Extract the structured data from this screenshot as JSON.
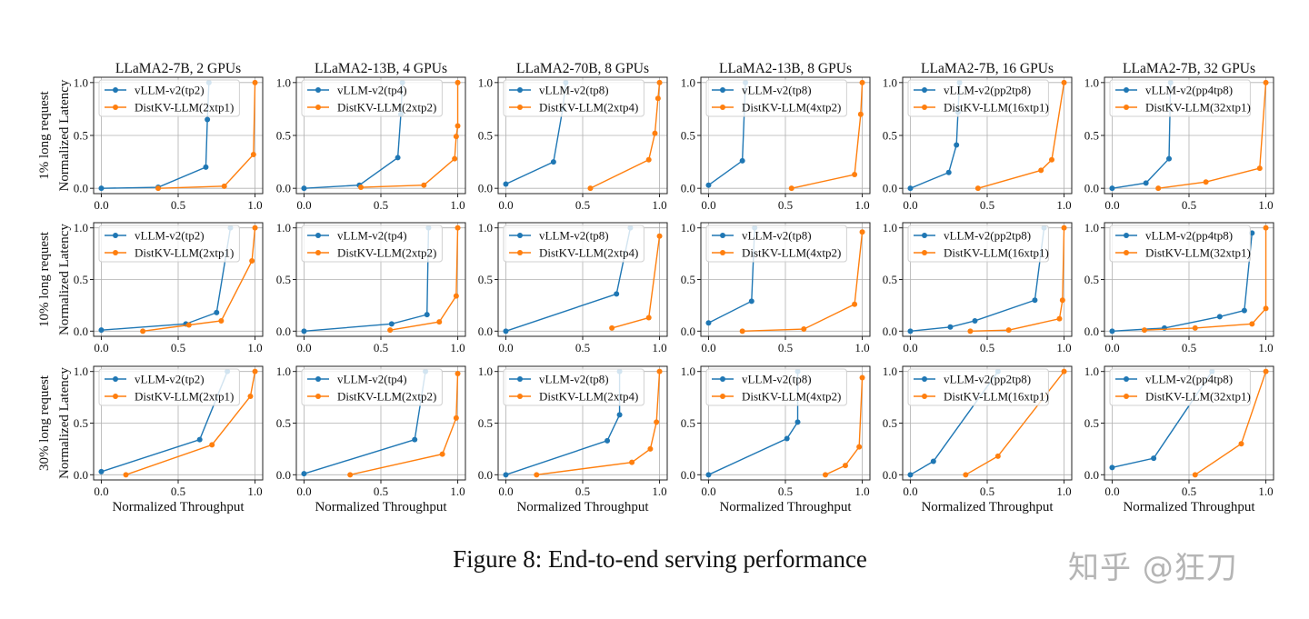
{
  "caption": "Figure 8: End-to-end serving performance",
  "watermark": "知乎 @狂刀",
  "colors": {
    "vllm": "#1f77b4",
    "distkv": "#ff7f0e"
  },
  "column_titles": [
    "LLaMA2-7B, 2 GPUs",
    "LLaMA2-13B, 4 GPUs",
    "LLaMA2-70B, 8 GPUs",
    "LLaMA2-13B, 8 GPUs",
    "LLaMA2-7B, 16 GPUs",
    "LLaMA2-7B, 32 GPUs"
  ],
  "row_labels": [
    "1% long request",
    "10% long request",
    "30% long request"
  ],
  "ylabel": "Normalized Latency",
  "xlabel": "Normalized Throughput",
  "legend_labels": [
    [
      "vLLM-v2(tp2)",
      "DistKV-LLM(2xtp1)"
    ],
    [
      "vLLM-v2(tp4)",
      "DistKV-LLM(2xtp2)"
    ],
    [
      "vLLM-v2(tp8)",
      "DistKV-LLM(2xtp4)"
    ],
    [
      "vLLM-v2(tp8)",
      "DistKV-LLM(4xtp2)"
    ],
    [
      "vLLM-v2(pp2tp8)",
      "DistKV-LLM(16xtp1)"
    ],
    [
      "vLLM-v2(pp4tp8)",
      "DistKV-LLM(32xtp1)"
    ]
  ],
  "chart_data": {
    "type": "line",
    "layout": "grid 3 rows x 6 columns",
    "xlim": [
      0,
      1
    ],
    "ylim": [
      0,
      1
    ],
    "xticks": [
      "0.0",
      "0.5",
      "1.0"
    ],
    "yticks": [
      "0.0",
      "0.5",
      "1.0"
    ],
    "grid": true,
    "legend_placement": "top-left",
    "panels": [
      {
        "row": 0,
        "col": 0,
        "series": [
          {
            "name": "vLLM-v2(tp2)",
            "points": [
              [
                0,
                0
              ],
              [
                0.37,
                0.01
              ],
              [
                0.68,
                0.2
              ],
              [
                0.69,
                0.65
              ],
              [
                0.7,
                1.0
              ]
            ]
          },
          {
            "name": "DistKV-LLM(2xtp1)",
            "points": [
              [
                0.37,
                0
              ],
              [
                0.8,
                0.02
              ],
              [
                0.99,
                0.32
              ],
              [
                1.0,
                1.0
              ]
            ]
          }
        ]
      },
      {
        "row": 0,
        "col": 1,
        "series": [
          {
            "name": "vLLM-v2(tp4)",
            "points": [
              [
                0,
                0
              ],
              [
                0.36,
                0.03
              ],
              [
                0.61,
                0.29
              ],
              [
                0.63,
                0.7
              ],
              [
                0.64,
                1.0
              ]
            ]
          },
          {
            "name": "DistKV-LLM(2xtp2)",
            "points": [
              [
                0.37,
                0.01
              ],
              [
                0.78,
                0.03
              ],
              [
                0.98,
                0.28
              ],
              [
                0.99,
                0.49
              ],
              [
                1.0,
                0.59
              ],
              [
                1.0,
                1.0
              ]
            ]
          }
        ]
      },
      {
        "row": 0,
        "col": 2,
        "series": [
          {
            "name": "vLLM-v2(tp8)",
            "points": [
              [
                0,
                0.04
              ],
              [
                0.31,
                0.25
              ],
              [
                0.37,
                0.75
              ],
              [
                0.39,
                1.0
              ]
            ]
          },
          {
            "name": "DistKV-LLM(2xtp4)",
            "points": [
              [
                0.55,
                0
              ],
              [
                0.93,
                0.27
              ],
              [
                0.97,
                0.52
              ],
              [
                0.99,
                0.85
              ],
              [
                1.0,
                1.0
              ]
            ]
          }
        ]
      },
      {
        "row": 0,
        "col": 3,
        "series": [
          {
            "name": "vLLM-v2(tp8)",
            "points": [
              [
                0,
                0.03
              ],
              [
                0.22,
                0.26
              ],
              [
                0.24,
                1.0
              ]
            ]
          },
          {
            "name": "DistKV-LLM(4xtp2)",
            "points": [
              [
                0.54,
                0
              ],
              [
                0.95,
                0.13
              ],
              [
                0.99,
                0.7
              ],
              [
                1.0,
                1.0
              ]
            ]
          }
        ]
      },
      {
        "row": 0,
        "col": 4,
        "series": [
          {
            "name": "vLLM-v2(pp2tp8)",
            "points": [
              [
                0,
                0
              ],
              [
                0.25,
                0.15
              ],
              [
                0.3,
                0.41
              ],
              [
                0.31,
                0.72
              ],
              [
                0.32,
                1.0
              ]
            ]
          },
          {
            "name": "DistKV-LLM(16xtp1)",
            "points": [
              [
                0.44,
                0
              ],
              [
                0.85,
                0.17
              ],
              [
                0.92,
                0.27
              ],
              [
                1.0,
                1.0
              ]
            ]
          }
        ]
      },
      {
        "row": 0,
        "col": 5,
        "series": [
          {
            "name": "vLLM-v2(pp4tp8)",
            "points": [
              [
                0,
                0
              ],
              [
                0.22,
                0.05
              ],
              [
                0.37,
                0.28
              ],
              [
                0.38,
                1.0
              ]
            ]
          },
          {
            "name": "DistKV-LLM(32xtp1)",
            "points": [
              [
                0.3,
                0
              ],
              [
                0.61,
                0.06
              ],
              [
                0.96,
                0.19
              ],
              [
                1.0,
                1.0
              ]
            ]
          }
        ]
      },
      {
        "row": 1,
        "col": 0,
        "series": [
          {
            "name": "vLLM-v2(tp2)",
            "points": [
              [
                0,
                0.01
              ],
              [
                0.55,
                0.07
              ],
              [
                0.75,
                0.18
              ],
              [
                0.84,
                1.0
              ]
            ]
          },
          {
            "name": "DistKV-LLM(2xtp1)",
            "points": [
              [
                0.27,
                0
              ],
              [
                0.57,
                0.06
              ],
              [
                0.78,
                0.1
              ],
              [
                0.98,
                0.68
              ],
              [
                1.0,
                1.0
              ]
            ]
          }
        ]
      },
      {
        "row": 1,
        "col": 1,
        "series": [
          {
            "name": "vLLM-v2(tp4)",
            "points": [
              [
                0,
                0
              ],
              [
                0.57,
                0.07
              ],
              [
                0.8,
                0.16
              ],
              [
                0.81,
                1.0
              ]
            ]
          },
          {
            "name": "DistKV-LLM(2xtp2)",
            "points": [
              [
                0.56,
                0.01
              ],
              [
                0.88,
                0.09
              ],
              [
                0.99,
                0.34
              ],
              [
                1.0,
                1.0
              ]
            ]
          }
        ]
      },
      {
        "row": 1,
        "col": 2,
        "series": [
          {
            "name": "vLLM-v2(tp8)",
            "points": [
              [
                0,
                0
              ],
              [
                0.72,
                0.36
              ],
              [
                0.81,
                1.0
              ]
            ]
          },
          {
            "name": "DistKV-LLM(2xtp4)",
            "points": [
              [
                0.69,
                0.03
              ],
              [
                0.93,
                0.13
              ],
              [
                1.0,
                0.92
              ]
            ]
          }
        ]
      },
      {
        "row": 1,
        "col": 3,
        "series": [
          {
            "name": "vLLM-v2(tp8)",
            "points": [
              [
                0,
                0.08
              ],
              [
                0.28,
                0.29
              ],
              [
                0.3,
                1.0
              ]
            ]
          },
          {
            "name": "DistKV-LLM(4xtp2)",
            "points": [
              [
                0.22,
                0
              ],
              [
                0.62,
                0.02
              ],
              [
                0.95,
                0.26
              ],
              [
                1.0,
                0.96
              ]
            ]
          }
        ]
      },
      {
        "row": 1,
        "col": 4,
        "series": [
          {
            "name": "vLLM-v2(pp2tp8)",
            "points": [
              [
                0,
                0
              ],
              [
                0.26,
                0.04
              ],
              [
                0.42,
                0.1
              ],
              [
                0.81,
                0.3
              ],
              [
                0.87,
                1.0
              ]
            ]
          },
          {
            "name": "DistKV-LLM(16xtp1)",
            "points": [
              [
                0.39,
                0
              ],
              [
                0.64,
                0.01
              ],
              [
                0.97,
                0.12
              ],
              [
                0.99,
                0.3
              ],
              [
                1.0,
                1.0
              ]
            ]
          }
        ]
      },
      {
        "row": 1,
        "col": 5,
        "series": [
          {
            "name": "vLLM-v2(pp4tp8)",
            "points": [
              [
                0,
                0
              ],
              [
                0.34,
                0.03
              ],
              [
                0.7,
                0.14
              ],
              [
                0.86,
                0.2
              ],
              [
                0.91,
                0.95
              ]
            ]
          },
          {
            "name": "DistKV-LLM(32xtp1)",
            "points": [
              [
                0.21,
                0.01
              ],
              [
                0.54,
                0.03
              ],
              [
                0.91,
                0.07
              ],
              [
                1.0,
                0.22
              ],
              [
                1.0,
                1.0
              ]
            ]
          }
        ]
      },
      {
        "row": 2,
        "col": 0,
        "series": [
          {
            "name": "vLLM-v2(tp2)",
            "points": [
              [
                0,
                0.03
              ],
              [
                0.64,
                0.34
              ],
              [
                0.82,
                1.0
              ]
            ]
          },
          {
            "name": "DistKV-LLM(2xtp1)",
            "points": [
              [
                0.16,
                0
              ],
              [
                0.72,
                0.29
              ],
              [
                0.97,
                0.76
              ],
              [
                1.0,
                1.0
              ]
            ]
          }
        ]
      },
      {
        "row": 2,
        "col": 1,
        "series": [
          {
            "name": "vLLM-v2(tp4)",
            "points": [
              [
                0,
                0.01
              ],
              [
                0.72,
                0.34
              ],
              [
                0.79,
                1.0
              ]
            ]
          },
          {
            "name": "DistKV-LLM(2xtp2)",
            "points": [
              [
                0.3,
                0
              ],
              [
                0.9,
                0.2
              ],
              [
                0.99,
                0.55
              ],
              [
                1.0,
                0.98
              ]
            ]
          }
        ]
      },
      {
        "row": 2,
        "col": 2,
        "series": [
          {
            "name": "vLLM-v2(tp8)",
            "points": [
              [
                0,
                0
              ],
              [
                0.66,
                0.33
              ],
              [
                0.74,
                0.58
              ],
              [
                0.74,
                1.0
              ]
            ]
          },
          {
            "name": "DistKV-LLM(2xtp4)",
            "points": [
              [
                0.2,
                0
              ],
              [
                0.82,
                0.12
              ],
              [
                0.94,
                0.25
              ],
              [
                0.98,
                0.51
              ],
              [
                1.0,
                1.0
              ]
            ]
          }
        ]
      },
      {
        "row": 2,
        "col": 3,
        "series": [
          {
            "name": "vLLM-v2(tp8)",
            "points": [
              [
                0,
                0
              ],
              [
                0.51,
                0.35
              ],
              [
                0.58,
                0.51
              ],
              [
                0.58,
                1.0
              ]
            ]
          },
          {
            "name": "DistKV-LLM(4xtp2)",
            "points": [
              [
                0.76,
                0
              ],
              [
                0.89,
                0.09
              ],
              [
                0.98,
                0.27
              ],
              [
                1.0,
                0.94
              ]
            ]
          }
        ]
      },
      {
        "row": 2,
        "col": 4,
        "series": [
          {
            "name": "vLLM-v2(pp2tp8)",
            "points": [
              [
                0,
                0
              ],
              [
                0.15,
                0.13
              ],
              [
                0.57,
                1.0
              ]
            ]
          },
          {
            "name": "DistKV-LLM(16xtp1)",
            "points": [
              [
                0.36,
                0
              ],
              [
                0.57,
                0.18
              ],
              [
                1.0,
                1.0
              ]
            ]
          }
        ]
      },
      {
        "row": 2,
        "col": 5,
        "series": [
          {
            "name": "vLLM-v2(pp4tp8)",
            "points": [
              [
                0,
                0.07
              ],
              [
                0.27,
                0.16
              ],
              [
                0.65,
                1.0
              ]
            ]
          },
          {
            "name": "DistKV-LLM(32xtp1)",
            "points": [
              [
                0.54,
                0
              ],
              [
                0.84,
                0.3
              ],
              [
                1.0,
                1.0
              ]
            ]
          }
        ]
      }
    ]
  }
}
